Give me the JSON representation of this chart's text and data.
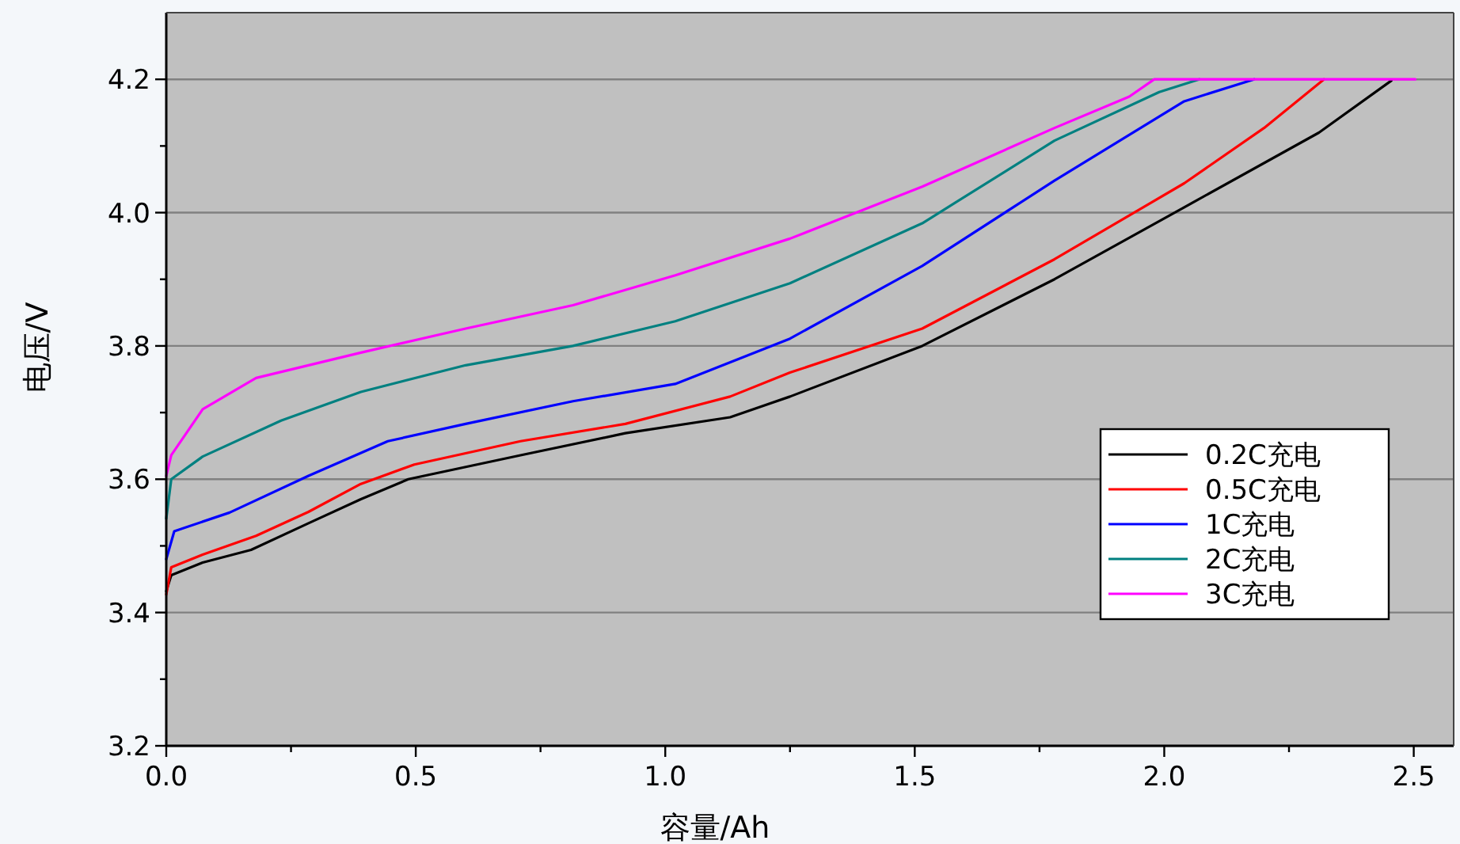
{
  "chart_data": {
    "type": "line",
    "xlabel": "容量/Ah",
    "ylabel": "电压/V",
    "xlim": [
      0,
      2.58
    ],
    "ylim": [
      3.2,
      4.3
    ],
    "xticks": [
      {
        "value": 0,
        "label": "0.0"
      },
      {
        "value": 0.25,
        "label": null
      },
      {
        "value": 0.5,
        "label": "0.5"
      },
      {
        "value": 0.75,
        "label": null
      },
      {
        "value": 1,
        "label": "1.0"
      },
      {
        "value": 1.25,
        "label": null
      },
      {
        "value": 1.5,
        "label": "1.5"
      },
      {
        "value": 1.75,
        "label": null
      },
      {
        "value": 2,
        "label": "2.0"
      },
      {
        "value": 2.25,
        "label": null
      },
      {
        "value": 2.5,
        "label": "2.5"
      }
    ],
    "yticks": [
      3.2,
      {
        "value": 3.3,
        "label": null
      },
      3.4,
      {
        "value": 3.5,
        "label": null
      },
      3.6,
      {
        "value": 3.7,
        "label": null
      },
      3.8,
      {
        "value": 3.9,
        "label": null
      },
      {
        "value": 4.0,
        "label": "4.0"
      },
      {
        "value": 4.1,
        "label": null
      },
      4.2
    ],
    "grid": "y",
    "legend": "bottom right",
    "line_style": "solid",
    "marker": "none",
    "series": [
      {
        "name": "0.2C充电",
        "color": "#000000",
        "x": [
          0,
          0.01,
          0.073,
          0.17,
          0.285,
          0.39,
          0.485,
          0.71,
          0.92,
          1.13,
          1.25,
          1.515,
          1.78,
          2.04,
          2.31,
          2.455
        ],
        "values": [
          3.432,
          3.456,
          3.475,
          3.494,
          3.534,
          3.57,
          3.6,
          3.636,
          3.669,
          3.693,
          3.724,
          3.8,
          3.9,
          4.008,
          4.12,
          4.198
        ]
      },
      {
        "name": "0.5C充电",
        "color": "#ff0000",
        "x": [
          0,
          0.01,
          0.073,
          0.18,
          0.285,
          0.39,
          0.497,
          0.71,
          0.92,
          1.13,
          1.25,
          1.515,
          1.78,
          2.04,
          2.2,
          2.32
        ],
        "values": [
          3.427,
          3.468,
          3.487,
          3.515,
          3.551,
          3.593,
          3.622,
          3.657,
          3.683,
          3.724,
          3.76,
          3.826,
          3.93,
          4.044,
          4.127,
          4.2
        ]
      },
      {
        "name": "1C充电",
        "color": "#0000ff",
        "x": [
          0,
          0.016,
          0.127,
          0.285,
          0.444,
          0.6,
          0.815,
          1.02,
          1.25,
          1.515,
          1.78,
          2.04,
          2.18
        ],
        "values": [
          3.48,
          3.522,
          3.55,
          3.605,
          3.657,
          3.683,
          3.717,
          3.743,
          3.811,
          3.92,
          4.048,
          4.167,
          4.2
        ]
      },
      {
        "name": "2C充电",
        "color": "#008080",
        "x": [
          0,
          0.01,
          0.073,
          0.23,
          0.39,
          0.6,
          0.815,
          1.02,
          1.25,
          1.515,
          1.78,
          1.99,
          2.07
        ],
        "values": [
          3.541,
          3.6,
          3.634,
          3.688,
          3.731,
          3.771,
          3.8,
          3.837,
          3.894,
          3.984,
          4.108,
          4.181,
          4.2
        ]
      },
      {
        "name": "3C充电",
        "color": "#ff00ff",
        "x": [
          0,
          0.01,
          0.073,
          0.18,
          0.39,
          0.6,
          0.815,
          1.02,
          1.25,
          1.515,
          1.78,
          1.93,
          1.98,
          2.503
        ],
        "values": [
          3.605,
          3.636,
          3.705,
          3.752,
          3.79,
          3.826,
          3.861,
          3.906,
          3.961,
          4.039,
          4.127,
          4.174,
          4.2,
          4.2
        ]
      }
    ]
  }
}
